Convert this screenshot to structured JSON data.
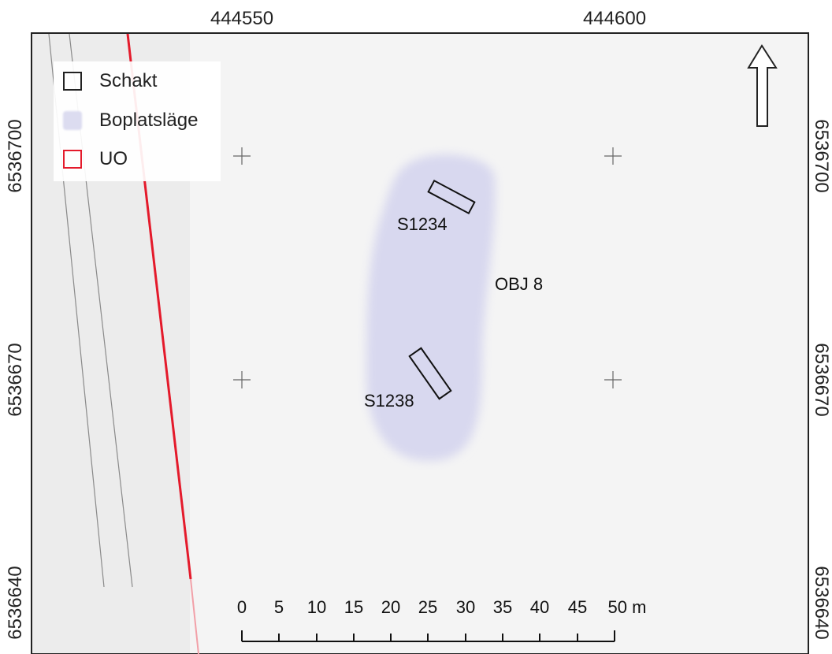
{
  "map": {
    "coords_top": [
      "444550",
      "444600"
    ],
    "coords_left": [
      "6536700",
      "6536670",
      "6536640"
    ],
    "coords_right": [
      "6536700",
      "6536670",
      "6536640"
    ]
  },
  "legend": {
    "items": [
      {
        "label": "Schakt",
        "style": "outline",
        "color": "#222222"
      },
      {
        "label": "Boplatsläge",
        "style": "fill",
        "color": "#dcdcf0"
      },
      {
        "label": "UO",
        "style": "outline",
        "color": "#e41a2b"
      }
    ]
  },
  "features": {
    "trench_labels": [
      "S1234",
      "S1238"
    ],
    "object_label": "OBJ 8"
  },
  "scale_bar": {
    "ticks": [
      "0",
      "5",
      "10",
      "15",
      "20",
      "25",
      "30",
      "35",
      "40",
      "45",
      "50 m"
    ]
  },
  "colors": {
    "map_background": "#f4f4f4",
    "settlement_area": "#d8d8ef",
    "boundary_line": "#e41a2b",
    "road_lines": "#8a8a8a"
  },
  "icons": {
    "north_arrow": "north-arrow-icon",
    "grid_cross": "plus-icon"
  }
}
